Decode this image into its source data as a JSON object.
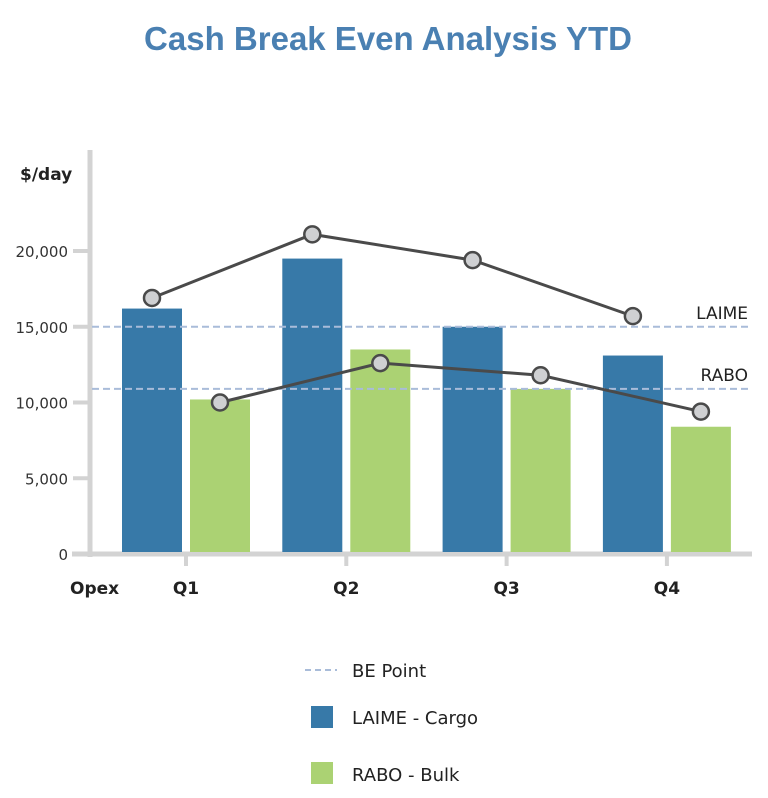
{
  "chart_data": {
    "type": "bar",
    "title": "Cash Break Even Analysis YTD",
    "ylabel": "$/day",
    "xlabel": "Opex",
    "categories": [
      "Q1",
      "Q2",
      "Q3",
      "Q4"
    ],
    "ylim": [
      0,
      22000
    ],
    "yticks": [
      0,
      5000,
      10000,
      15000,
      20000
    ],
    "ytick_labels": [
      "0",
      "5,000",
      "10,000",
      "15,000",
      "20,000"
    ],
    "series": [
      {
        "name": "LAIME - Cargo",
        "type": "bar",
        "color": "#3779a8",
        "values": [
          16200,
          19500,
          15000,
          13100
        ]
      },
      {
        "name": "RABO - Bulk",
        "type": "bar",
        "color": "#abd273",
        "values": [
          10200,
          13500,
          10900,
          8400
        ]
      },
      {
        "type": "line",
        "color": "#4a4a4a",
        "marker_color": "#cfd0d2",
        "aligned_with": "LAIME - Cargo",
        "values": [
          16900,
          21100,
          19400,
          15700
        ]
      },
      {
        "type": "line",
        "color": "#4a4a4a",
        "marker_color": "#cfd0d2",
        "aligned_with": "RABO - Bulk",
        "values": [
          10000,
          12600,
          11800,
          9400
        ]
      }
    ],
    "reference_lines": {
      "name": "BE Point",
      "color": "#a9bcd9",
      "style": "dashed",
      "lines": [
        {
          "label": "LAIME",
          "value": 15000
        },
        {
          "label": "RABO",
          "value": 10900
        }
      ]
    },
    "grid": false,
    "legend": {
      "placement": "bottom",
      "entries": [
        "BE Point",
        "LAIME - Cargo",
        "RABO - Bulk"
      ]
    }
  }
}
